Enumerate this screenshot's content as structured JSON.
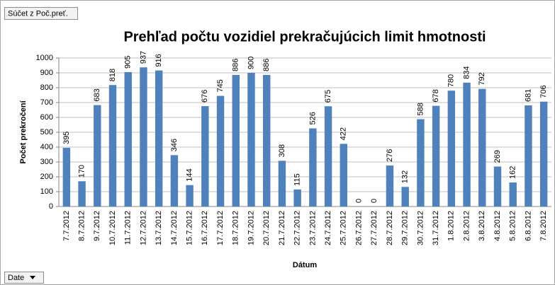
{
  "filter_button": "Súčet z Poč.preť.",
  "field_button": "Date",
  "chart_data": {
    "type": "bar",
    "title": "Prehľad počtu vozidiel prekračujúcich limit hmotnosti",
    "x_label": "Dátum",
    "y_label": "Počet prekročení",
    "categories": [
      "7.7.2012",
      "8.7.2012",
      "9.7.2012",
      "10.7.2012",
      "11.7.2012",
      "12.7.2012",
      "13.7.2012",
      "14.7.2012",
      "15.7.2012",
      "16.7.2012",
      "17.7.2012",
      "18.7.2012",
      "19.7.2012",
      "20.7.2012",
      "21.7.2012",
      "22.7.2012",
      "23.7.2012",
      "24.7.2012",
      "25.7.2012",
      "26.7.2012",
      "27.7.2012",
      "28.7.2012",
      "29.7.2012",
      "30.7.2012",
      "31.7.2012",
      "1.8.2012",
      "2.8.2012",
      "3.8.2012",
      "4.8.2012",
      "5.8.2012",
      "6.8.2012",
      "7.8.2012"
    ],
    "values": [
      395,
      170,
      683,
      818,
      905,
      937,
      916,
      346,
      144,
      676,
      745,
      886,
      900,
      886,
      308,
      115,
      526,
      675,
      422,
      0,
      0,
      276,
      132,
      588,
      678,
      780,
      834,
      792,
      269,
      162,
      681,
      706
    ],
    "color": "#4f81bd",
    "ylim": [
      0,
      1000
    ],
    "yticks": [
      0,
      100,
      200,
      300,
      400,
      500,
      600,
      700,
      800,
      900,
      1000
    ],
    "grid": true,
    "data_labels": true
  }
}
